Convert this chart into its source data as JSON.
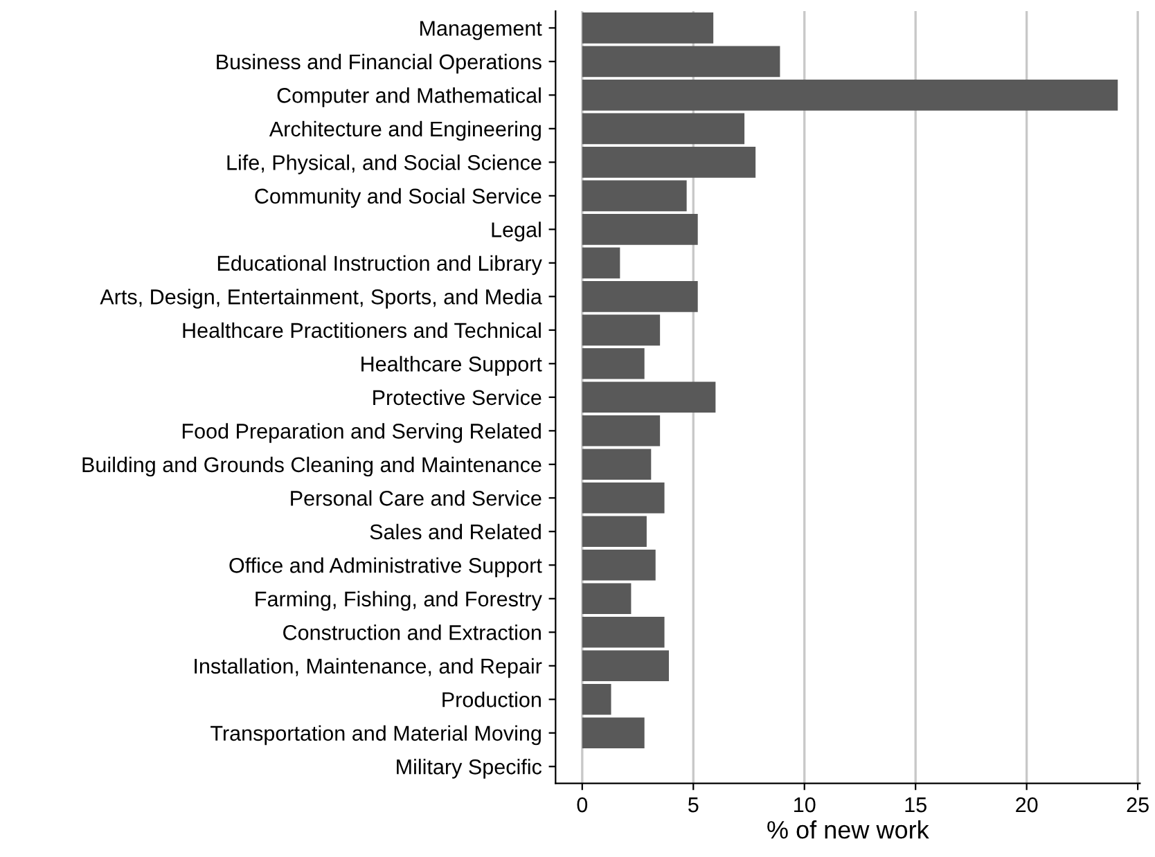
{
  "chart_data": {
    "type": "bar",
    "orientation": "horizontal",
    "xlabel": "% of new work",
    "categories": [
      "Management",
      "Business and Financial Operations",
      "Computer and Mathematical",
      "Architecture and Engineering",
      "Life, Physical, and Social Science",
      "Community and Social Service",
      "Legal",
      "Educational Instruction and Library",
      "Arts, Design, Entertainment, Sports, and Media",
      "Healthcare Practitioners and Technical",
      "Healthcare Support",
      "Protective Service",
      "Food Preparation and Serving Related",
      "Building and Grounds Cleaning and Maintenance",
      "Personal Care and Service",
      "Sales and Related",
      "Office and Administrative Support",
      "Farming, Fishing, and Forestry",
      "Construction and Extraction",
      "Installation, Maintenance, and Repair",
      "Production",
      "Transportation and Material Moving",
      "Military Specific"
    ],
    "values": [
      5.9,
      8.9,
      24.1,
      7.3,
      7.8,
      4.7,
      5.2,
      1.7,
      5.2,
      3.5,
      2.8,
      6.0,
      3.5,
      3.1,
      3.7,
      2.9,
      3.3,
      2.2,
      3.7,
      3.9,
      1.3,
      2.8,
      0
    ],
    "color": "#595959",
    "xlim": [
      -1.2,
      25.1
    ],
    "xticks": [
      0,
      5,
      10,
      15,
      20,
      25
    ],
    "grid": "x"
  }
}
